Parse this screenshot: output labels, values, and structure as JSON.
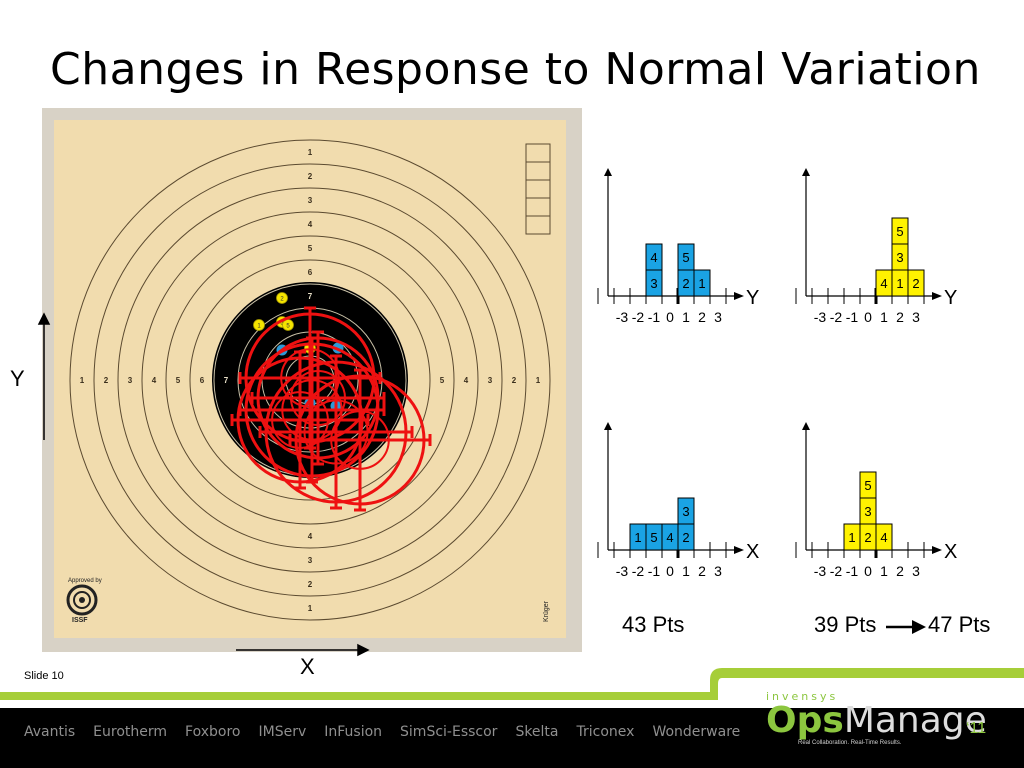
{
  "slide": {
    "title": "Changes in Response to Normal Variation",
    "slide_number": "Slide 10"
  },
  "target": {
    "ring_numbers_vertical_top": [
      "1",
      "2",
      "3",
      "4",
      "5",
      "6",
      "7"
    ],
    "ring_numbers_vertical_bottom": [
      "4",
      "3",
      "2",
      "1"
    ],
    "ring_numbers_horizontal_left": [
      "1",
      "2",
      "3",
      "4",
      "5",
      "6",
      "7"
    ],
    "ring_numbers_horizontal_right": [
      "5",
      "4",
      "3",
      "2",
      "1"
    ],
    "approved_by": "Approved by",
    "issf": "ISSF",
    "maker": "Krüger",
    "y_label": "Y",
    "x_label": "X",
    "colors": {
      "paper": "#f1dcae",
      "ring_line": "#5b4a30",
      "bull": "#000000",
      "reticle": "#ee1111",
      "shot_yellow": "#f5e400",
      "shot_blue": "#2c9ad8"
    }
  },
  "chart_data": [
    {
      "type": "bar",
      "layout": "stacked-blocks",
      "color": "#1aa3e4",
      "axis_label": "Y",
      "x_ticks": [
        "-3",
        "-2",
        "-1",
        "0",
        "1",
        "2",
        "3"
      ],
      "stacks": [
        {
          "x": -1,
          "values": [
            "3",
            "4"
          ]
        },
        {
          "x": 1,
          "values": [
            "2",
            "5"
          ]
        },
        {
          "x": 2,
          "values": [
            "1"
          ]
        }
      ]
    },
    {
      "type": "bar",
      "layout": "stacked-blocks",
      "color": "#fff200",
      "axis_label": "Y",
      "x_ticks": [
        "-3",
        "-2",
        "-1",
        "0",
        "1",
        "2",
        "3"
      ],
      "stacks": [
        {
          "x": 1,
          "values": [
            "4"
          ]
        },
        {
          "x": 2,
          "values": [
            "1",
            "3",
            "5"
          ]
        },
        {
          "x": 3,
          "values": [
            "2"
          ]
        }
      ]
    },
    {
      "type": "bar",
      "layout": "stacked-blocks",
      "color": "#1aa3e4",
      "axis_label": "X",
      "x_ticks": [
        "-3",
        "-2",
        "-1",
        "0",
        "1",
        "2",
        "3"
      ],
      "stacks": [
        {
          "x": -2,
          "values": [
            "1"
          ]
        },
        {
          "x": -1,
          "values": [
            "5"
          ]
        },
        {
          "x": 0,
          "values": [
            "4"
          ]
        },
        {
          "x": 1,
          "values": [
            "2",
            "3"
          ]
        }
      ]
    },
    {
      "type": "bar",
      "layout": "stacked-blocks",
      "color": "#fff200",
      "axis_label": "X",
      "x_ticks": [
        "-3",
        "-2",
        "-1",
        "0",
        "1",
        "2",
        "3"
      ],
      "stacks": [
        {
          "x": -1,
          "values": [
            "1"
          ]
        },
        {
          "x": 0,
          "values": [
            "2",
            "3",
            "5"
          ]
        },
        {
          "x": 1,
          "values": [
            "4"
          ]
        }
      ]
    }
  ],
  "points": {
    "left": "43 Pts",
    "right_before": "39 Pts",
    "right_after": "47 Pts"
  },
  "footer": {
    "nav": [
      "Avantis",
      "Eurotherm",
      "Foxboro",
      "IMServ",
      "InFusion",
      "SimSci-Esscor",
      "Skelta",
      "Triconex",
      "Wonderware"
    ],
    "brand_top": "invensys",
    "brand_ops": "Ops",
    "brand_manage": "Manage",
    "brand_year": "‘11",
    "brand_tagline": "Real Collaboration. Real-Time Results.",
    "accent": "#a6ce39"
  }
}
